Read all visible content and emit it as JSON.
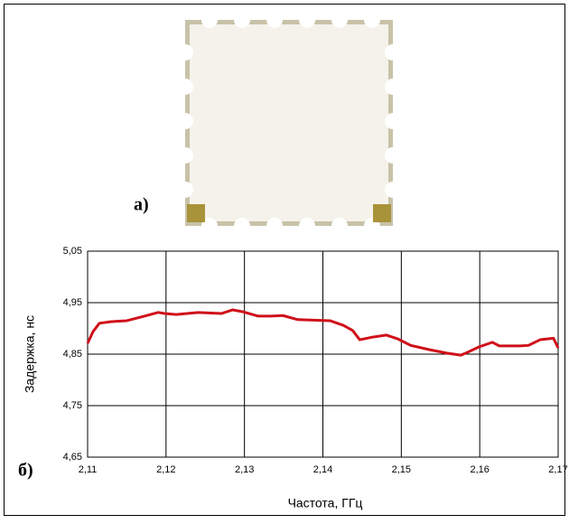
{
  "panel_labels": [
    "а)",
    "б)"
  ],
  "chart_data": {
    "type": "line",
    "xlabel": "Частота, ГГц",
    "ylabel": "Задержка, нс",
    "xlim": [
      2.11,
      2.17
    ],
    "xticks": [
      {
        "value": 2.11,
        "label": "2,11"
      },
      {
        "value": 2.12,
        "label": "2,12"
      },
      {
        "value": 2.13,
        "label": "2,13"
      },
      {
        "value": 2.14,
        "label": "2,14"
      },
      {
        "value": 2.15,
        "label": "2,15"
      },
      {
        "value": 2.16,
        "label": "2,16"
      },
      {
        "value": 2.17,
        "label": "2,17"
      }
    ],
    "ylim": [
      4.65,
      5.05
    ],
    "yticks": [
      {
        "value": 4.65,
        "label": "4,65"
      },
      {
        "value": 4.75,
        "label": "4,75"
      },
      {
        "value": 4.85,
        "label": "4,85"
      },
      {
        "value": 4.95,
        "label": "4,95"
      },
      {
        "value": 5.05,
        "label": "5,05"
      }
    ],
    "grid": true,
    "series": [
      {
        "color": "#d0101a",
        "x": [
          2.11,
          2.1107,
          2.1115,
          2.1129,
          2.115,
          2.1173,
          2.119,
          2.1198,
          2.1213,
          2.1241,
          2.1271,
          2.1285,
          2.1299,
          2.1317,
          2.1334,
          2.1349,
          2.1368,
          2.1409,
          2.1426,
          2.1438,
          2.1447,
          2.1463,
          2.1481,
          2.1495,
          2.1512,
          2.1535,
          2.1558,
          2.1576,
          2.1585,
          2.1599,
          2.1616,
          2.1625,
          2.1651,
          2.1662,
          2.1677,
          2.1694,
          2.17
        ],
        "values": [
          4.871,
          4.894,
          4.91,
          4.913,
          4.915,
          4.924,
          4.931,
          4.929,
          4.927,
          4.931,
          4.929,
          4.936,
          4.932,
          4.924,
          4.924,
          4.925,
          4.917,
          4.915,
          4.906,
          4.896,
          4.878,
          4.883,
          4.887,
          4.88,
          4.867,
          4.859,
          4.852,
          4.848,
          4.854,
          4.864,
          4.873,
          4.866,
          4.866,
          4.867,
          4.878,
          4.881,
          4.862
        ]
      }
    ]
  }
}
